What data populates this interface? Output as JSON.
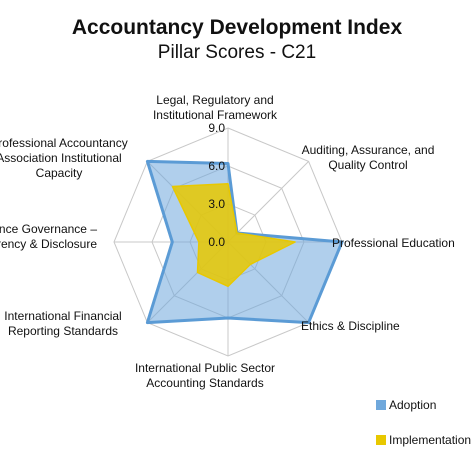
{
  "chart_data": {
    "type": "radar",
    "title": "Accountancy Development Index",
    "subtitle": "Pillar Scores - C21",
    "axes": [
      [
        "Legal, Regulatory and",
        "Institutional Framework"
      ],
      [
        "Auditing, Assurance, and",
        "Quality Control"
      ],
      [
        "Professional Education"
      ],
      [
        "Ethics & Discipline"
      ],
      [
        "International Public Sector",
        "Accounting Standards"
      ],
      [
        "International Financial",
        "Reporting Standards"
      ],
      [
        "Public Sector Finance Governance –",
        "Transparency & Disclosure"
      ],
      [
        "Professional Accountancy",
        "Association Institutional",
        "Capacity"
      ]
    ],
    "ticks": [
      "0.0",
      "3.0",
      "6.0",
      "9.0"
    ],
    "range": [
      0,
      9
    ],
    "series": [
      {
        "name": "Adoption",
        "color": "#6fa8dc",
        "values": [
          6.2,
          1.0,
          9.0,
          9.0,
          6.0,
          9.0,
          4.4,
          9.0
        ]
      },
      {
        "name": "Implementation",
        "color": "#e8c800",
        "values": [
          4.6,
          1.0,
          5.3,
          2.5,
          3.5,
          3.4,
          2.3,
          6.2
        ]
      }
    ]
  }
}
